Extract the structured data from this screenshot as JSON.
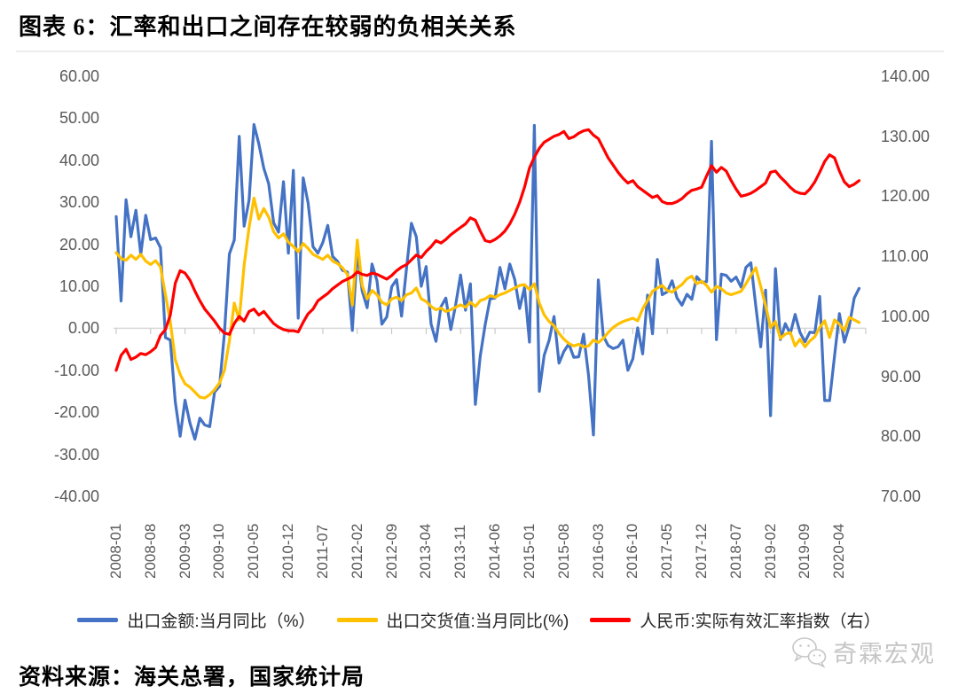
{
  "title": "图表 6：汇率和出口之间存在较弱的负相关关系",
  "source": "资料来源：海关总署，国家统计局",
  "watermark": {
    "icon": "wechat-icon",
    "text": "奇霖宏观"
  },
  "chart_data": {
    "type": "line",
    "x_start": "2008-01",
    "frequency": "monthly",
    "x_tick_step_months": 7,
    "x_tick_labels": [
      "2008-01",
      "2008-08",
      "2009-03",
      "2009-10",
      "2010-05",
      "2010-12",
      "2011-07",
      "2012-02",
      "2012-09",
      "2013-04",
      "2013-11",
      "2014-06",
      "2015-01",
      "2015-08",
      "2016-03",
      "2016-10",
      "2017-05",
      "2017-12",
      "2018-07",
      "2019-02",
      "2019-09",
      "2020-04"
    ],
    "axes": {
      "left": {
        "min": -40,
        "max": 60,
        "tick_labels": [
          "60.00",
          "50.00",
          "40.00",
          "30.00",
          "20.00",
          "10.00",
          "0.00",
          "-10.00",
          "-20.00",
          "-30.00",
          "-40.00"
        ]
      },
      "right": {
        "min": 70,
        "max": 140,
        "tick_labels": [
          "140.00",
          "130.00",
          "120.00",
          "110.00",
          "100.00",
          "90.00",
          "80.00",
          "70.00"
        ]
      }
    },
    "grid": "zero-line-only",
    "legend_position": "bottom",
    "zero_line_color": "#d9d9d9",
    "series": [
      {
        "name": "出口金额:当月同比（%）",
        "color": "#4472C4",
        "axis": "left",
        "values": [
          26.6,
          6.5,
          30.6,
          21.8,
          28.1,
          17.6,
          26.9,
          21.1,
          21.5,
          19.2,
          -2.2,
          -2.8,
          -17.5,
          -25.7,
          -17.1,
          -22.6,
          -26.4,
          -21.4,
          -23.0,
          -23.4,
          -15.2,
          -13.8,
          -1.2,
          17.7,
          21.0,
          45.7,
          24.3,
          30.5,
          48.5,
          43.9,
          38.1,
          34.4,
          25.1,
          22.9,
          34.9,
          17.9,
          37.6,
          2.4,
          35.8,
          29.9,
          19.4,
          17.9,
          20.4,
          24.5,
          17.1,
          15.9,
          13.8,
          13.4,
          -0.5,
          18.4,
          8.9,
          4.9,
          15.3,
          11.3,
          1.0,
          2.7,
          9.9,
          11.6,
          2.9,
          14.1,
          25.0,
          21.8,
          10.0,
          14.7,
          1.0,
          -3.1,
          5.1,
          7.2,
          -0.3,
          5.6,
          12.7,
          4.3,
          10.6,
          -18.1,
          -6.6,
          0.9,
          7.0,
          7.2,
          14.5,
          9.4,
          15.3,
          11.6,
          4.7,
          9.7,
          -3.3,
          48.3,
          -15.0,
          -6.4,
          -2.8,
          2.8,
          -8.3,
          -5.5,
          -3.7,
          -6.9,
          -6.8,
          -1.4,
          -11.2,
          -25.4,
          11.5,
          -1.8,
          -4.1,
          -4.8,
          -4.4,
          -2.8,
          -10.0,
          -7.3,
          0.1,
          -6.1,
          7.9,
          -1.3,
          16.4,
          8.0,
          8.7,
          11.3,
          7.2,
          5.5,
          8.1,
          6.9,
          12.3,
          10.9,
          11.1,
          44.5,
          -2.7,
          12.9,
          12.6,
          11.2,
          12.2,
          9.8,
          14.5,
          15.6,
          5.4,
          -4.4,
          9.1,
          -20.8,
          14.2,
          -2.7,
          1.1,
          -1.3,
          3.3,
          -1.0,
          -3.2,
          -0.9,
          -1.1,
          7.6,
          -17.2,
          -17.2,
          -6.6,
          3.5,
          -3.3,
          0.5,
          7.2,
          9.5
        ]
      },
      {
        "name": "出口交货值:当月同比(%)",
        "color": "#FFC000",
        "axis": "left",
        "values": [
          18.0,
          16.6,
          16.2,
          17.4,
          16.4,
          17.6,
          16.0,
          15.2,
          16.1,
          14.6,
          8.0,
          1.5,
          -7.5,
          -11.0,
          -13.2,
          -14.0,
          -15.2,
          -16.4,
          -16.6,
          -15.8,
          -14.6,
          -13.0,
          -10.0,
          -3.0,
          6.0,
          2.0,
          15.0,
          24.0,
          31.0,
          26.0,
          28.5,
          26.5,
          23.0,
          21.5,
          22.5,
          20.5,
          19.5,
          18.2,
          20.2,
          19.0,
          17.6,
          17.0,
          16.4,
          17.4,
          16.0,
          15.4,
          14.4,
          12.8,
          5.5,
          21.0,
          10.2,
          7.0,
          9.0,
          8.0,
          6.2,
          5.6,
          7.0,
          7.4,
          6.6,
          8.0,
          8.4,
          9.6,
          7.0,
          6.4,
          5.2,
          4.4,
          4.8,
          4.0,
          4.4,
          5.0,
          5.6,
          5.0,
          6.2,
          5.2,
          6.6,
          7.0,
          7.8,
          7.4,
          8.0,
          8.4,
          9.0,
          9.6,
          10.2,
          10.4,
          9.2,
          10.6,
          6.0,
          3.2,
          1.6,
          0.6,
          -1.2,
          -2.6,
          -3.6,
          -4.2,
          -3.8,
          -4.4,
          -4.2,
          -2.8,
          -3.4,
          -2.4,
          -1.0,
          0.2,
          1.0,
          1.6,
          2.0,
          2.4,
          1.8,
          4.6,
          6.6,
          8.8,
          9.6,
          10.2,
          9.0,
          8.6,
          9.6,
          10.4,
          11.8,
          12.4,
          10.6,
          11.2,
          10.2,
          8.6,
          10.0,
          9.4,
          8.4,
          8.0,
          8.4,
          8.8,
          10.6,
          12.6,
          14.4,
          10.0,
          5.4,
          0.2,
          1.6,
          -2.4,
          -1.4,
          -1.0,
          -4.2,
          -2.6,
          -4.4,
          -3.0,
          -2.0,
          0.2,
          1.8,
          -2.2,
          2.0,
          1.0,
          -0.6,
          2.6,
          2.0,
          1.4
        ]
      },
      {
        "name": "人民币:实际有效汇率指数（右）",
        "color": "#FF0000",
        "axis": "right",
        "values": [
          91.0,
          93.5,
          94.5,
          92.8,
          93.2,
          93.8,
          93.6,
          94.1,
          94.8,
          96.8,
          97.8,
          100.2,
          105.5,
          107.6,
          107.2,
          106.0,
          104.2,
          102.6,
          101.2,
          100.2,
          99.2,
          98.0,
          97.2,
          97.0,
          98.8,
          100.0,
          99.2,
          100.8,
          101.2,
          100.2,
          100.8,
          99.8,
          98.8,
          98.2,
          97.8,
          97.6,
          97.6,
          97.4,
          99.0,
          100.4,
          101.2,
          102.6,
          103.2,
          103.8,
          104.6,
          105.2,
          105.8,
          106.2,
          106.6,
          107.4,
          107.0,
          106.8,
          107.2,
          107.0,
          106.6,
          106.2,
          106.8,
          107.6,
          108.2,
          108.6,
          109.4,
          110.2,
          109.8,
          110.8,
          111.6,
          112.6,
          112.2,
          112.8,
          113.6,
          114.2,
          114.8,
          115.4,
          116.4,
          116.0,
          114.2,
          112.6,
          112.4,
          112.8,
          113.4,
          114.2,
          115.4,
          117.0,
          119.0,
          121.5,
          124.7,
          126.5,
          128.0,
          129.0,
          129.5,
          130.0,
          130.3,
          130.8,
          129.6,
          129.9,
          130.5,
          130.9,
          131.1,
          130.2,
          129.6,
          128.0,
          126.4,
          125.2,
          124.0,
          123.0,
          122.2,
          122.6,
          121.6,
          121.0,
          120.4,
          119.8,
          120.1,
          119.1,
          118.8,
          118.8,
          119.1,
          119.6,
          120.4,
          121.0,
          121.2,
          121.5,
          123.4,
          125.1,
          124.0,
          124.8,
          124.2,
          122.6,
          121.2,
          120.0,
          120.2,
          120.5,
          121.0,
          121.6,
          122.2,
          124.0,
          124.2,
          123.2,
          122.4,
          121.5,
          120.8,
          120.5,
          120.4,
          121.2,
          122.4,
          124.0,
          125.8,
          126.9,
          126.4,
          124.2,
          122.4,
          121.6,
          122.0,
          122.6
        ]
      }
    ]
  }
}
